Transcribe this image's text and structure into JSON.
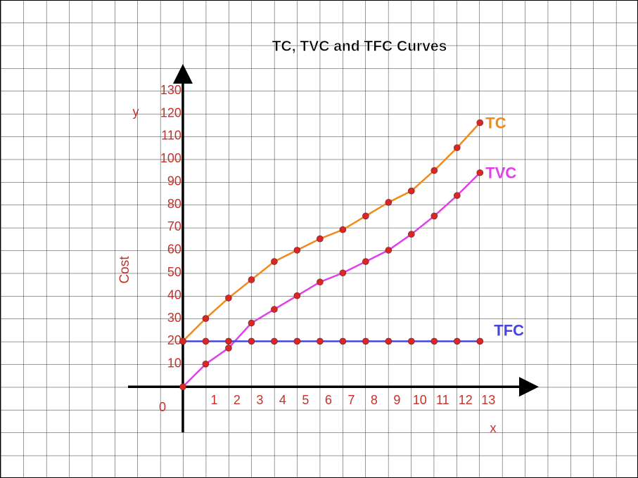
{
  "chart_data": {
    "type": "line",
    "title": "TC, TVC and TFC Curves",
    "x_label": "x",
    "y_label": "y",
    "y_axis_title": "Cost",
    "x": [
      0,
      1,
      2,
      3,
      4,
      5,
      6,
      7,
      8,
      9,
      10,
      11,
      12,
      13
    ],
    "series": [
      {
        "name": "TC",
        "color": "#f28a1a",
        "values": [
          20,
          30,
          39,
          47,
          55,
          60,
          65,
          69,
          75,
          81,
          86,
          95,
          105,
          116
        ]
      },
      {
        "name": "TVC",
        "color": "#e040e8",
        "values": [
          0,
          10,
          17,
          28,
          34,
          40,
          46,
          50,
          55,
          60,
          67,
          75,
          84,
          94
        ]
      },
      {
        "name": "TFC",
        "color": "#4545e0",
        "values": [
          20,
          20,
          20,
          20,
          20,
          20,
          20,
          20,
          20,
          20,
          20,
          20,
          20,
          20
        ]
      }
    ],
    "marker_color": "#d62828",
    "xlim": [
      -2.4,
      15.3
    ],
    "ylim": [
      -20,
      139
    ],
    "xticks": [
      1,
      2,
      3,
      4,
      5,
      6,
      7,
      8,
      9,
      10,
      11,
      12,
      13
    ],
    "yticks": [
      0,
      10,
      20,
      30,
      40,
      50,
      60,
      70,
      80,
      90,
      100,
      110,
      120,
      130
    ]
  }
}
